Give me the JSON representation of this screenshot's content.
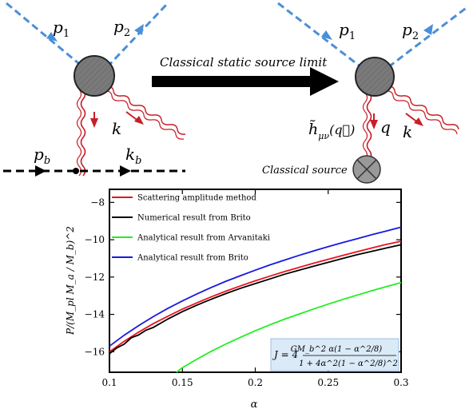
{
  "diagram": {
    "left": {
      "p1": "p",
      "p1_sub": "1",
      "p2": "p",
      "p2_sub": "2",
      "k": "k",
      "pb": "p",
      "pb_sub": "b",
      "kb": "k",
      "kb_sub": "b"
    },
    "arrow_label": "Classical static source limit",
    "right": {
      "p1": "p",
      "p1_sub": "1",
      "p2": "p",
      "p2_sub": "2",
      "q": "q",
      "k": "k",
      "h_label": "h̃",
      "h_sub": "μν",
      "h_arg": "(q⃗)",
      "source_label": "Classical source"
    }
  },
  "chart_data": {
    "type": "line",
    "title": "",
    "xlabel": "α",
    "ylabel": "P/(M_pl M_a / M_b)^2",
    "xlim": [
      0.1,
      0.3
    ],
    "ylim": [
      -17.1,
      -7.3
    ],
    "xticks": [
      0.1,
      0.15,
      0.2,
      0.25,
      0.3
    ],
    "xtick_labels": [
      "0.1",
      "0.15",
      "0.2",
      "0.25",
      "0.3"
    ],
    "yticks": [
      -16,
      -14,
      -12,
      -10,
      -8
    ],
    "ytick_labels": [
      "−16",
      "−14",
      "−12",
      "−10",
      "−8"
    ],
    "grid": false,
    "legend_position": "top-left",
    "series": [
      {
        "name": "Scattering amplitude method",
        "color": "#e8141e",
        "x": [
          0.1,
          0.11,
          0.12,
          0.13,
          0.14,
          0.15,
          0.16,
          0.17,
          0.18,
          0.19,
          0.2,
          0.21,
          0.22,
          0.23,
          0.24,
          0.25,
          0.26,
          0.27,
          0.28,
          0.29,
          0.3
        ],
        "y": [
          -16.0,
          -15.45,
          -14.95,
          -14.5,
          -14.1,
          -13.72,
          -13.38,
          -13.05,
          -12.75,
          -12.47,
          -12.2,
          -11.95,
          -11.71,
          -11.48,
          -11.26,
          -11.05,
          -10.84,
          -10.64,
          -10.44,
          -10.25,
          -10.08
        ]
      },
      {
        "name": "Numerical result from Brito",
        "color": "#000000",
        "x": [
          0.1,
          0.105,
          0.11,
          0.115,
          0.12,
          0.125,
          0.13,
          0.14,
          0.15,
          0.16,
          0.17,
          0.18,
          0.19,
          0.2,
          0.21,
          0.22,
          0.23,
          0.24,
          0.25,
          0.26,
          0.27,
          0.28,
          0.29,
          0.3
        ],
        "y": [
          -16.1,
          -15.8,
          -15.6,
          -15.25,
          -15.1,
          -14.85,
          -14.7,
          -14.25,
          -13.85,
          -13.5,
          -13.18,
          -12.88,
          -12.6,
          -12.35,
          -12.1,
          -11.85,
          -11.63,
          -11.42,
          -11.21,
          -11.0,
          -10.8,
          -10.62,
          -10.44,
          -10.27
        ]
      },
      {
        "name": "Analytical result from Arvanitaki",
        "color": "#22ee22",
        "x": [
          0.146,
          0.15,
          0.16,
          0.17,
          0.18,
          0.19,
          0.2,
          0.21,
          0.22,
          0.23,
          0.24,
          0.25,
          0.26,
          0.27,
          0.28,
          0.29,
          0.3
        ],
        "y": [
          -17.1,
          -16.85,
          -16.4,
          -15.97,
          -15.58,
          -15.22,
          -14.88,
          -14.56,
          -14.26,
          -13.98,
          -13.71,
          -13.45,
          -13.2,
          -12.96,
          -12.73,
          -12.51,
          -12.3
        ]
      },
      {
        "name": "Analytical result from Brito",
        "color": "#1818e0",
        "x": [
          0.1,
          0.11,
          0.12,
          0.13,
          0.14,
          0.15,
          0.16,
          0.17,
          0.18,
          0.19,
          0.2,
          0.21,
          0.22,
          0.23,
          0.24,
          0.25,
          0.26,
          0.27,
          0.28,
          0.29,
          0.3
        ],
        "y": [
          -15.7,
          -15.12,
          -14.6,
          -14.12,
          -13.68,
          -13.28,
          -12.9,
          -12.55,
          -12.22,
          -11.92,
          -11.63,
          -11.35,
          -11.09,
          -10.84,
          -10.6,
          -10.37,
          -10.15,
          -9.94,
          -9.73,
          -9.53,
          -9.33
        ]
      }
    ],
    "annotation": {
      "lhs": "J = 4",
      "numerator": "GM_b^2 α(1 − α^2/8)",
      "denominator": "1 + 4α^2(1 − α^2/8)^2"
    }
  },
  "colors": {
    "dashed_line": "#4a8fd8",
    "graviton": "#c81e28",
    "blob": "#7a7a7a",
    "annotation_bg": "#dbeaf7"
  }
}
